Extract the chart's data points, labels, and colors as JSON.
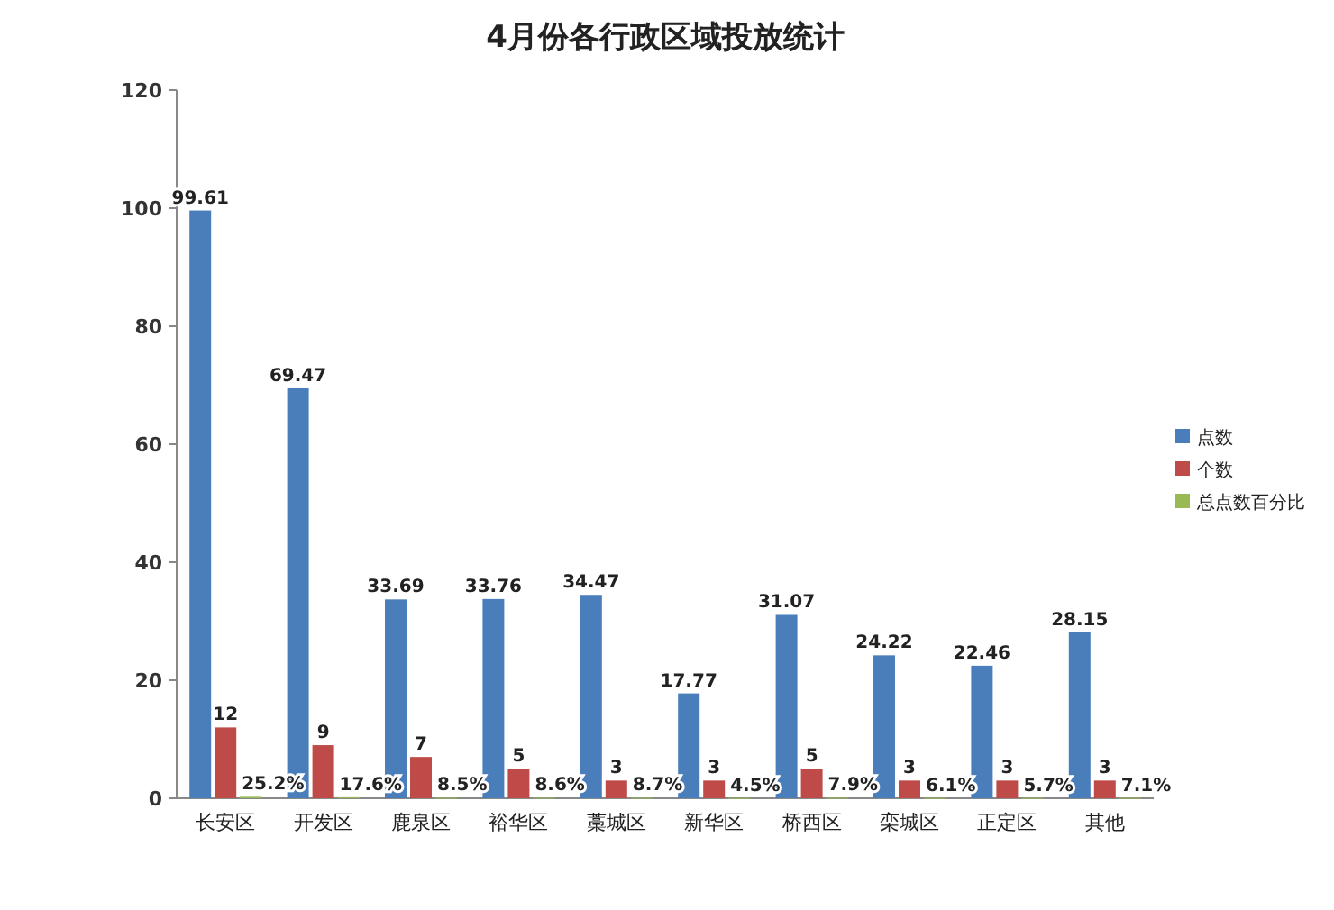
{
  "chart_data": {
    "type": "bar",
    "title": "4月份各行政区域投放统计",
    "categories": [
      "长安区",
      "开发区",
      "鹿泉区",
      "裕华区",
      "藁城区",
      "新华区",
      "桥西区",
      "栾城区",
      "正定区",
      "其他"
    ],
    "series": [
      {
        "name": "点数",
        "color": "#4a7ebb",
        "values": [
          99.61,
          69.47,
          33.69,
          33.76,
          34.47,
          17.77,
          31.07,
          24.22,
          22.46,
          28.15
        ],
        "value_labels": [
          "99.61",
          "69.47",
          "33.69",
          "33.76",
          "34.47",
          "17.77",
          "31.07",
          "24.22",
          "22.46",
          "28.15"
        ]
      },
      {
        "name": "个数",
        "color": "#be4b48",
        "values": [
          12,
          9,
          7,
          5,
          3,
          3,
          5,
          3,
          3,
          3
        ],
        "value_labels": [
          "12",
          "9",
          "7",
          "5",
          "3",
          "3",
          "5",
          "3",
          "3",
          "3"
        ]
      },
      {
        "name": "总点数百分比",
        "color": "#98b954",
        "values": [
          0.252,
          0.176,
          0.085,
          0.086,
          0.087,
          0.045,
          0.079,
          0.061,
          0.057,
          0.071
        ],
        "value_labels": [
          "25.2%",
          "17.6%",
          "8.5%",
          "8.6%",
          "8.7%",
          "4.5%",
          "7.9%",
          "6.1%",
          "5.7%",
          "7.1%"
        ]
      }
    ],
    "ylim": [
      0,
      120
    ],
    "yticks": [
      0,
      20,
      40,
      60,
      80,
      100,
      120
    ],
    "grid": false,
    "legend": "right"
  }
}
